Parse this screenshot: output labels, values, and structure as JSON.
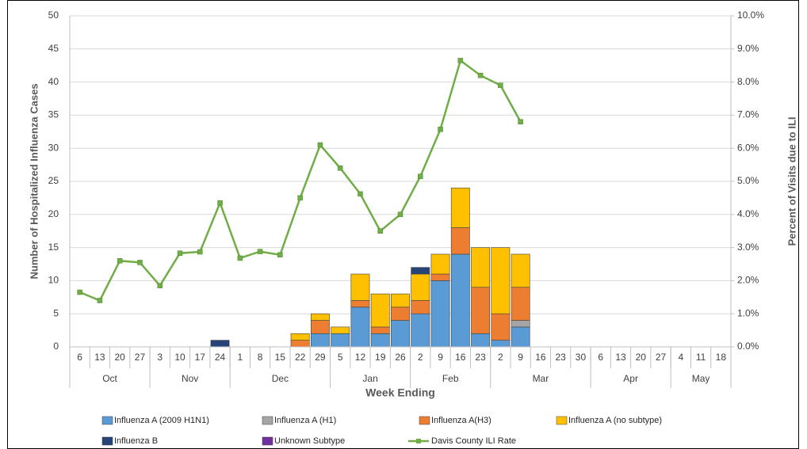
{
  "chart_data": {
    "type": "bar",
    "stacked": true,
    "y_label": "Number of Hospitalized Influenza Cases",
    "y2_label": "Percent of Visits due to ILI",
    "x_label": "Week Ending",
    "categories": [
      "6",
      "13",
      "20",
      "27",
      "3",
      "10",
      "17",
      "24",
      "1",
      "8",
      "15",
      "22",
      "29",
      "5",
      "12",
      "19",
      "26",
      "2",
      "9",
      "16",
      "23",
      "2",
      "9",
      "16",
      "23",
      "30",
      "6",
      "13",
      "20",
      "27",
      "4",
      "11",
      "18"
    ],
    "month_groups": [
      {
        "name": "Oct",
        "weeks": 4
      },
      {
        "name": "Nov",
        "weeks": 4
      },
      {
        "name": "Dec",
        "weeks": 5
      },
      {
        "name": "Jan",
        "weeks": 4
      },
      {
        "name": "Feb",
        "weeks": 4
      },
      {
        "name": "Mar",
        "weeks": 5
      },
      {
        "name": "Apr",
        "weeks": 4
      },
      {
        "name": "May",
        "weeks": 3
      }
    ],
    "series": [
      {
        "name": "Influenza A (2009 H1N1)",
        "color": "#5b9bd5",
        "values": [
          0,
          0,
          0,
          0,
          0,
          0,
          0,
          0,
          0,
          0,
          0,
          0,
          2,
          2,
          6,
          2,
          4,
          5,
          10,
          14,
          2,
          1,
          3,
          null,
          null,
          null,
          null,
          null,
          null,
          null,
          null,
          null,
          null
        ]
      },
      {
        "name": "Influenza A (H1)",
        "color": "#a5a5a5",
        "values": [
          0,
          0,
          0,
          0,
          0,
          0,
          0,
          0,
          0,
          0,
          0,
          0,
          0,
          0,
          0,
          0,
          0,
          0,
          0,
          0,
          0,
          0,
          1,
          null,
          null,
          null,
          null,
          null,
          null,
          null,
          null,
          null,
          null
        ]
      },
      {
        "name": "Influenza A(H3)",
        "color": "#ed7d31",
        "values": [
          0,
          0,
          0,
          0,
          0,
          0,
          0,
          0,
          0,
          0,
          0,
          1,
          2,
          0,
          1,
          1,
          2,
          2,
          1,
          4,
          7,
          4,
          5,
          null,
          null,
          null,
          null,
          null,
          null,
          null,
          null,
          null,
          null
        ]
      },
      {
        "name": "Influenza A (no subtype)",
        "color": "#ffc000",
        "values": [
          0,
          0,
          0,
          0,
          0,
          0,
          0,
          0,
          0,
          0,
          0,
          1,
          1,
          1,
          4,
          5,
          2,
          4,
          3,
          6,
          6,
          10,
          5,
          null,
          null,
          null,
          null,
          null,
          null,
          null,
          null,
          null,
          null
        ]
      },
      {
        "name": "Influenza B",
        "color": "#264478",
        "values": [
          0,
          0,
          0,
          0,
          0,
          0,
          0,
          1,
          0,
          0,
          0,
          0,
          0,
          0,
          0,
          0,
          0,
          1,
          0,
          0,
          0,
          0,
          0,
          null,
          null,
          null,
          null,
          null,
          null,
          null,
          null,
          null,
          null
        ]
      },
      {
        "name": "Unknown Subtype",
        "color": "#7030a0",
        "values": [
          0,
          0,
          0,
          0,
          0,
          0,
          0,
          0,
          0,
          0,
          0,
          0,
          0,
          0,
          0,
          0,
          0,
          0,
          0,
          0,
          0,
          0,
          0,
          null,
          null,
          null,
          null,
          null,
          null,
          null,
          null,
          null,
          null
        ]
      },
      {
        "name": "Davis County ILI Rate",
        "color": "#70ad47",
        "axis": "y2",
        "values": [
          1.65,
          1.4,
          2.6,
          2.55,
          1.85,
          2.83,
          2.87,
          4.35,
          2.68,
          2.88,
          2.78,
          4.5,
          6.1,
          5.4,
          4.62,
          3.5,
          4.0,
          5.15,
          6.57,
          8.65,
          8.2,
          7.9,
          6.8,
          null,
          null,
          null,
          null,
          null,
          null,
          null,
          null,
          null,
          null
        ]
      }
    ],
    "ylim": [
      0,
      50
    ],
    "yticks": [
      0,
      5,
      10,
      15,
      20,
      25,
      30,
      35,
      40,
      45,
      50
    ],
    "y2lim": [
      0,
      10
    ],
    "y2ticks": [
      {
        "value": 0,
        "label": "0.0%"
      },
      {
        "value": 1,
        "label": "1.0%"
      },
      {
        "value": 2,
        "label": "2.0%"
      },
      {
        "value": 3,
        "label": "3.0%"
      },
      {
        "value": 4,
        "label": "4.0%"
      },
      {
        "value": 5,
        "label": "5.0%"
      },
      {
        "value": 6,
        "label": "6.0%"
      },
      {
        "value": 7,
        "label": "7.0%"
      },
      {
        "value": 8,
        "label": "8.0%"
      },
      {
        "value": 9,
        "label": "9.0%"
      },
      {
        "value": 10,
        "label": "10.0%"
      }
    ],
    "grid": true,
    "legend": "bottom"
  }
}
